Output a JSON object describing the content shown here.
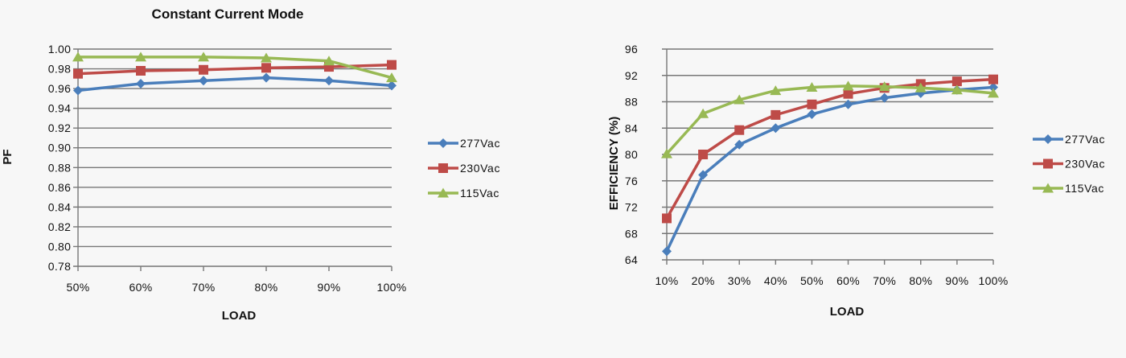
{
  "colors": {
    "277Vac": "#4a7ebb",
    "230Vac": "#be4b48",
    "115Vac": "#98b954",
    "grid": "#777777",
    "background": "#f7f7f7"
  },
  "chart_data": [
    {
      "type": "line",
      "title": "Constant Current Mode",
      "xlabel": "LOAD",
      "ylabel": "PF",
      "categories": [
        "50%",
        "60%",
        "70%",
        "80%",
        "90%",
        "100%"
      ],
      "ylim": [
        0.78,
        1.0
      ],
      "yticks": [
        "0.78",
        "0.80",
        "0.82",
        "0.84",
        "0.86",
        "0.88",
        "0.90",
        "0.92",
        "0.94",
        "0.96",
        "0.98",
        "1.00"
      ],
      "grid": true,
      "legend_position": "right",
      "series": [
        {
          "name": "277Vac",
          "marker": "diamond",
          "values": [
            0.958,
            0.965,
            0.968,
            0.971,
            0.968,
            0.963
          ]
        },
        {
          "name": "230Vac",
          "marker": "square",
          "values": [
            0.975,
            0.978,
            0.979,
            0.981,
            0.982,
            0.984
          ]
        },
        {
          "name": "115Vac",
          "marker": "triangle",
          "values": [
            0.992,
            0.992,
            0.992,
            0.991,
            0.988,
            0.971
          ]
        }
      ]
    },
    {
      "type": "line",
      "title": "",
      "xlabel": "LOAD",
      "ylabel": "EFFICIENCY (%)",
      "categories": [
        "10%",
        "20%",
        "30%",
        "40%",
        "50%",
        "60%",
        "70%",
        "80%",
        "90%",
        "100%"
      ],
      "ylim": [
        64,
        96
      ],
      "yticks": [
        "64",
        "68",
        "72",
        "76",
        "80",
        "84",
        "88",
        "92",
        "96"
      ],
      "grid": true,
      "legend_position": "right",
      "series": [
        {
          "name": "277Vac",
          "marker": "diamond",
          "values": [
            65.3,
            76.9,
            81.5,
            84.0,
            86.1,
            87.6,
            88.6,
            89.3,
            89.8,
            90.2
          ]
        },
        {
          "name": "230Vac",
          "marker": "square",
          "values": [
            70.3,
            80.0,
            83.7,
            86.0,
            87.6,
            89.2,
            90.1,
            90.7,
            91.1,
            91.4
          ]
        },
        {
          "name": "115Vac",
          "marker": "triangle",
          "values": [
            80.1,
            86.2,
            88.3,
            89.7,
            90.2,
            90.4,
            90.3,
            90.1,
            89.8,
            89.3
          ]
        }
      ]
    }
  ]
}
